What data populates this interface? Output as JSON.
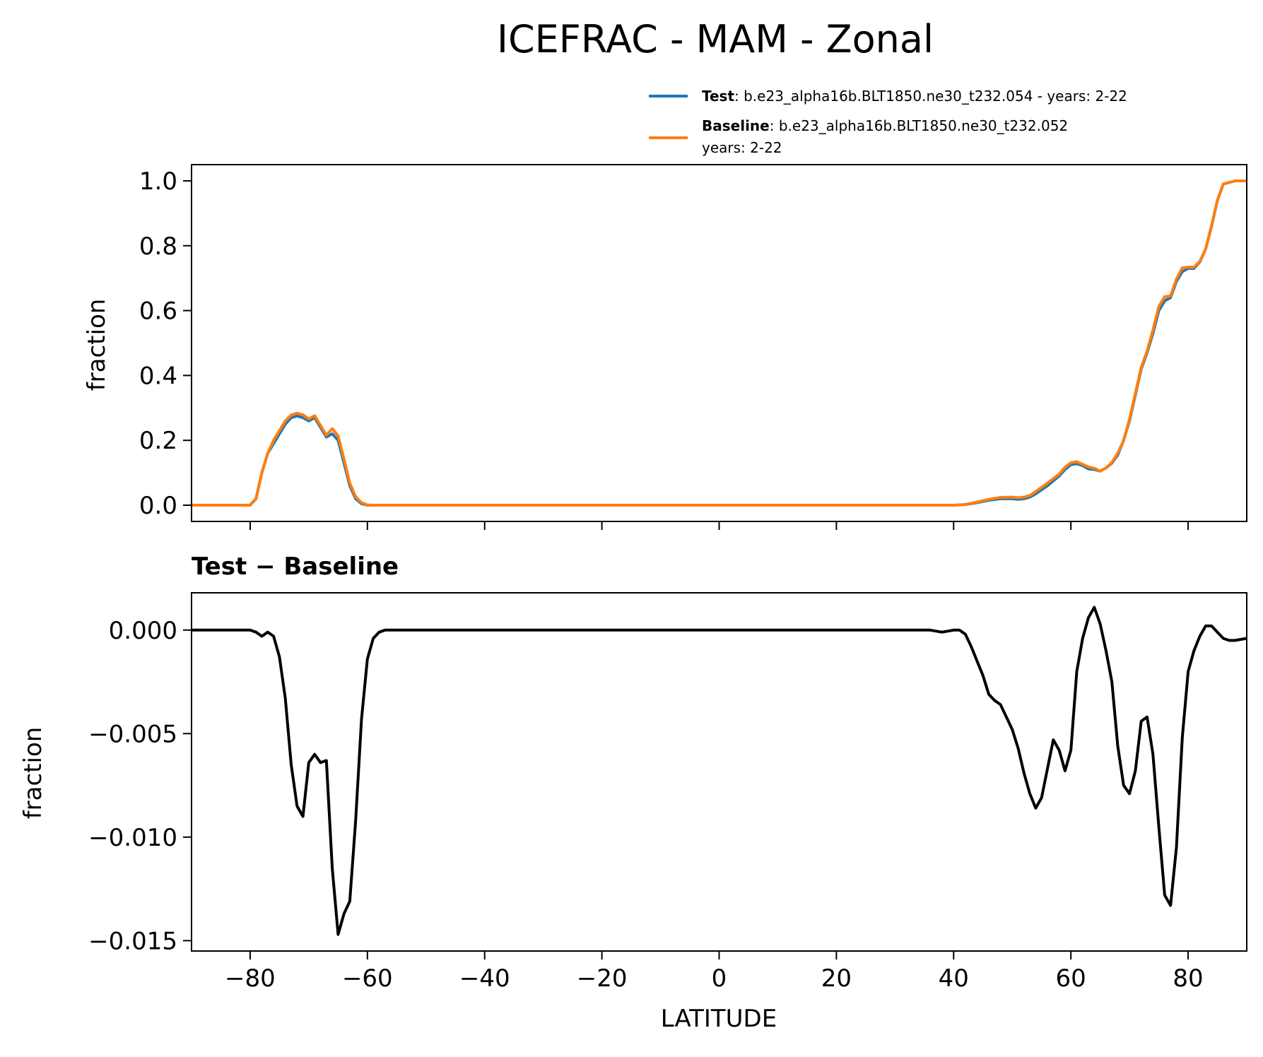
{
  "chart_data": [
    {
      "type": "line",
      "title": "ICEFRAC - MAM - Zonal",
      "xlabel": "",
      "ylabel": "fraction",
      "xlim": [
        -90,
        90
      ],
      "ylim": [
        -0.05,
        1.05
      ],
      "xticks": [
        -80,
        -60,
        -40,
        -20,
        0,
        20,
        40,
        60,
        80
      ],
      "yticks": [
        0.0,
        0.2,
        0.4,
        0.6,
        0.8,
        1.0
      ],
      "ytick_labels": [
        "0.0",
        "0.2",
        "0.4",
        "0.6",
        "0.8",
        "1.0"
      ],
      "legend": {
        "location": "upper-right-above",
        "entries": [
          {
            "bold": "Test",
            "text": ": b.e23_alpha16b.BLT1850.ne30_t232.054 - years: 2-22",
            "text2": "",
            "color": "#1f77b4"
          },
          {
            "bold": "Baseline",
            "text": ": b.e23_alpha16b.BLT1850.ne30_t232.052",
            "text2": "years: 2-22",
            "color": "#ff7f0e"
          }
        ]
      },
      "series": [
        {
          "name": "Test",
          "color": "#1f77b4",
          "x": [
            -90,
            -80,
            -79,
            -78,
            -77,
            -76,
            -75,
            -74,
            -73,
            -72,
            -71,
            -70,
            -69,
            -68,
            -67,
            -66,
            -65,
            -64,
            -63,
            -62,
            -61,
            -60,
            -59,
            -58,
            -55,
            0,
            35,
            40,
            42,
            44,
            46,
            48,
            50,
            51,
            52,
            53,
            54,
            56,
            58,
            59,
            60,
            61,
            62,
            63,
            64,
            65,
            66,
            67,
            68,
            69,
            70,
            71,
            72,
            73,
            74,
            75,
            76,
            77,
            78,
            79,
            80,
            81,
            82,
            83,
            84,
            85,
            86,
            88,
            90
          ],
          "y": [
            0.0,
            0.0,
            0.02,
            0.1,
            0.16,
            0.19,
            0.22,
            0.25,
            0.27,
            0.275,
            0.27,
            0.26,
            0.27,
            0.24,
            0.21,
            0.22,
            0.2,
            0.13,
            0.06,
            0.02,
            0.005,
            0.0,
            0.0,
            0.0,
            0.0,
            0.0,
            0.0,
            0.0,
            0.002,
            0.008,
            0.015,
            0.02,
            0.02,
            0.018,
            0.02,
            0.025,
            0.035,
            0.06,
            0.09,
            0.11,
            0.125,
            0.128,
            0.122,
            0.112,
            0.11,
            0.105,
            0.115,
            0.13,
            0.155,
            0.2,
            0.26,
            0.34,
            0.42,
            0.47,
            0.53,
            0.6,
            0.63,
            0.64,
            0.69,
            0.72,
            0.73,
            0.73,
            0.75,
            0.79,
            0.86,
            0.94,
            0.99,
            1.0,
            1.0
          ]
        },
        {
          "name": "Baseline",
          "color": "#ff7f0e",
          "x": [
            -90,
            -80,
            -79,
            -78,
            -77,
            -76,
            -75,
            -74,
            -73,
            -72,
            -71,
            -70,
            -69,
            -68,
            -67,
            -66,
            -65,
            -64,
            -63,
            -62,
            -61,
            -60,
            -59,
            -58,
            -55,
            0,
            35,
            40,
            42,
            44,
            46,
            48,
            50,
            51,
            52,
            53,
            54,
            56,
            58,
            59,
            60,
            61,
            62,
            63,
            64,
            65,
            66,
            67,
            68,
            69,
            70,
            71,
            72,
            73,
            74,
            75,
            76,
            77,
            78,
            79,
            80,
            81,
            82,
            83,
            84,
            85,
            86,
            88,
            90
          ],
          "y": [
            0.0,
            0.0,
            0.02,
            0.1,
            0.16,
            0.2,
            0.23,
            0.26,
            0.278,
            0.284,
            0.279,
            0.266,
            0.276,
            0.246,
            0.216,
            0.236,
            0.214,
            0.142,
            0.068,
            0.026,
            0.008,
            0.001,
            0.0,
            0.0,
            0.0,
            0.0,
            0.0,
            0.0,
            0.002,
            0.01,
            0.018,
            0.024,
            0.025,
            0.023,
            0.025,
            0.03,
            0.042,
            0.068,
            0.096,
            0.117,
            0.131,
            0.134,
            0.126,
            0.118,
            0.114,
            0.105,
            0.115,
            0.132,
            0.16,
            0.2,
            0.265,
            0.345,
            0.425,
            0.475,
            0.54,
            0.613,
            0.643,
            0.645,
            0.697,
            0.732,
            0.734,
            0.734,
            0.752,
            0.79,
            0.862,
            0.94,
            0.99,
            1.0,
            1.0
          ]
        }
      ]
    },
    {
      "type": "line",
      "title": "Test − Baseline",
      "xlabel": "LATITUDE",
      "ylabel": "fraction",
      "xlim": [
        -90,
        90
      ],
      "ylim": [
        -0.0155,
        0.0018
      ],
      "xticks": [
        -80,
        -60,
        -40,
        -20,
        0,
        20,
        40,
        60,
        80
      ],
      "xtick_labels": [
        "−80",
        "−60",
        "−40",
        "−20",
        "0",
        "20",
        "40",
        "60",
        "80"
      ],
      "yticks": [
        0.0,
        -0.005,
        -0.01,
        -0.015
      ],
      "ytick_labels": [
        "0.000",
        "−0.005",
        "−0.010",
        "−0.015"
      ],
      "series": [
        {
          "name": "Test − Baseline",
          "color": "#000000",
          "x": [
            -90,
            -80,
            -79,
            -78,
            -77,
            -76,
            -75,
            -74,
            -73,
            -72,
            -71,
            -70,
            -69,
            -68,
            -67,
            -66,
            -65,
            -64,
            -63,
            -62,
            -61,
            -60,
            -59,
            -58,
            -57,
            -55,
            0,
            36,
            38,
            40,
            41,
            42,
            43,
            44,
            45,
            46,
            47,
            48,
            49,
            50,
            51,
            52,
            53,
            54,
            55,
            56,
            57,
            58,
            59,
            60,
            61,
            62,
            63,
            64,
            65,
            66,
            67,
            68,
            69,
            70,
            71,
            72,
            73,
            74,
            75,
            76,
            77,
            78,
            79,
            80,
            81,
            82,
            83,
            84,
            85,
            86,
            87,
            88,
            90
          ],
          "y": [
            0.0,
            0.0,
            -0.0001,
            -0.0003,
            -0.0001,
            -0.0003,
            -0.0013,
            -0.0033,
            -0.0065,
            -0.0085,
            -0.009,
            -0.0064,
            -0.006,
            -0.0064,
            -0.0063,
            -0.0115,
            -0.0147,
            -0.0137,
            -0.0131,
            -0.0092,
            -0.0043,
            -0.0014,
            -0.0004,
            -0.0001,
            0.0,
            0.0,
            0.0,
            0.0,
            -0.0001,
            0.0,
            0.0,
            -0.0002,
            -0.0008,
            -0.0015,
            -0.0022,
            -0.0031,
            -0.0034,
            -0.0036,
            -0.0042,
            -0.0048,
            -0.0057,
            -0.0069,
            -0.0079,
            -0.0086,
            -0.0081,
            -0.0067,
            -0.0053,
            -0.0058,
            -0.0068,
            -0.0058,
            -0.002,
            -0.0004,
            0.0006,
            0.0011,
            0.0003,
            -0.001,
            -0.0025,
            -0.0056,
            -0.0075,
            -0.0079,
            -0.0068,
            -0.0044,
            -0.0042,
            -0.006,
            -0.0095,
            -0.0128,
            -0.0133,
            -0.0105,
            -0.0052,
            -0.002,
            -0.001,
            -0.0003,
            0.0002,
            0.0002,
            -0.0001,
            -0.0004,
            -0.0005,
            -0.0005,
            -0.0004
          ]
        }
      ]
    }
  ]
}
